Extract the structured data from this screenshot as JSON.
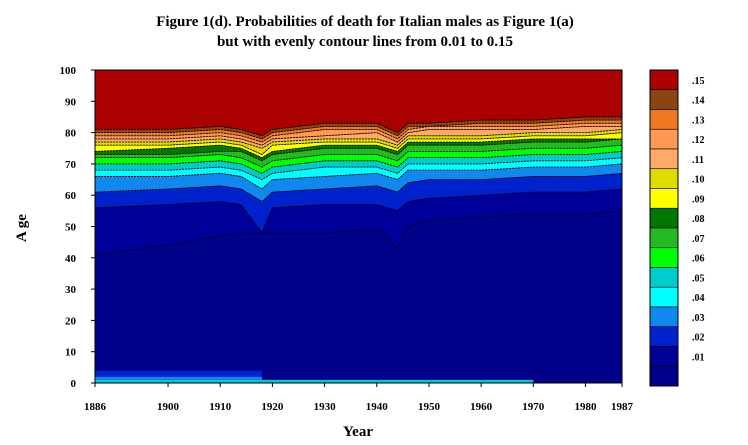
{
  "chart_data": {
    "type": "heatmap",
    "title_line1": "Figure 1(d). Probabilities of death for Italian males as Figure 1(a)",
    "title_line2": "but with evenly contour lines from 0.01 to 0.15",
    "xlabel": "Year",
    "ylabel": "A ge",
    "xlim": [
      1886,
      1987
    ],
    "ylim": [
      0,
      100
    ],
    "x_ticks": [
      {
        "value": 1886,
        "label": "1886"
      },
      {
        "value": 1900,
        "label": "1900"
      },
      {
        "value": 1910,
        "label": "1910"
      },
      {
        "value": 1920,
        "label": "1920"
      },
      {
        "value": 1930,
        "label": "1930"
      },
      {
        "value": 1940,
        "label": "1940"
      },
      {
        "value": 1950,
        "label": "1950"
      },
      {
        "value": 1960,
        "label": "1960"
      },
      {
        "value": 1970,
        "label": "1970"
      },
      {
        "value": 1980,
        "label": "1980"
      },
      {
        "value": 1987,
        "label": "1987"
      }
    ],
    "y_ticks": [
      {
        "value": 0,
        "label": "0"
      },
      {
        "value": 10,
        "label": "10"
      },
      {
        "value": 20,
        "label": "20"
      },
      {
        "value": 30,
        "label": "30"
      },
      {
        "value": 40,
        "label": "40"
      },
      {
        "value": 50,
        "label": "50"
      },
      {
        "value": 60,
        "label": "60"
      },
      {
        "value": 70,
        "label": "70"
      },
      {
        "value": 80,
        "label": "80"
      },
      {
        "value": 90,
        "label": "90"
      },
      {
        "value": 100,
        "label": "100"
      }
    ],
    "legend": [
      {
        "label": ".15",
        "color": "#aa0000"
      },
      {
        "label": ".14",
        "color": "#8b4513"
      },
      {
        "label": ".13",
        "color": "#ee7722"
      },
      {
        "label": ".12",
        "color": "#ff9955"
      },
      {
        "label": ".11",
        "color": "#ffaa66"
      },
      {
        "label": ".10",
        "color": "#dddd00"
      },
      {
        "label": ".09",
        "color": "#ffff00"
      },
      {
        "label": ".08",
        "color": "#007700"
      },
      {
        "label": ".07",
        "color": "#22bb22"
      },
      {
        "label": ".06",
        "color": "#00ff00"
      },
      {
        "label": ".05",
        "color": "#00cccc"
      },
      {
        "label": ".04",
        "color": "#00ffff"
      },
      {
        "label": ".03",
        "color": "#1188ee"
      },
      {
        "label": ".02",
        "color": "#0022cc"
      },
      {
        "label": ".01",
        "color": "#000099"
      },
      {
        "label": "",
        "color": "#000088"
      }
    ],
    "contour_levels": [
      0.01,
      0.02,
      0.03,
      0.04,
      0.05,
      0.06,
      0.07,
      0.08,
      0.09,
      0.1,
      0.11,
      0.12,
      0.13,
      0.14,
      0.15
    ],
    "contour_boundaries_years": [
      1886,
      1900,
      1910,
      1914,
      1918,
      1920,
      1930,
      1940,
      1944,
      1946,
      1950,
      1960,
      1970,
      1980,
      1987
    ],
    "contour_boundaries": [
      {
        "level": 0.01,
        "ages": [
          41,
          44,
          47,
          48,
          48,
          48,
          48,
          49,
          43,
          50,
          52,
          53,
          54,
          54,
          55
        ]
      },
      {
        "level": 0.02,
        "ages": [
          56,
          57,
          58,
          57,
          48,
          56,
          57,
          57,
          55,
          58,
          59,
          60,
          61,
          61,
          62
        ]
      },
      {
        "level": 0.03,
        "ages": [
          61,
          62,
          63,
          62,
          58,
          61,
          62,
          63,
          61,
          64,
          65,
          65,
          66,
          66,
          67
        ]
      },
      {
        "level": 0.04,
        "ages": [
          66,
          66,
          67,
          66,
          62,
          65,
          66,
          67,
          65,
          68,
          68,
          68,
          69,
          69,
          70
        ]
      },
      {
        "level": 0.05,
        "ages": [
          68,
          68,
          69,
          68,
          65,
          67,
          69,
          69,
          67,
          70,
          70,
          70,
          71,
          71,
          72
        ]
      },
      {
        "level": 0.06,
        "ages": [
          70,
          70,
          71,
          70,
          67,
          69,
          71,
          71,
          69,
          72,
          72,
          72,
          73,
          73,
          74
        ]
      },
      {
        "level": 0.07,
        "ages": [
          72,
          72,
          73,
          72,
          69,
          71,
          73,
          73,
          71,
          74,
          74,
          74,
          75,
          75,
          76
        ]
      },
      {
        "level": 0.08,
        "ages": [
          73,
          73,
          74,
          74,
          71,
          73,
          75,
          75,
          73,
          76,
          76,
          76,
          77,
          77,
          78
        ]
      },
      {
        "level": 0.09,
        "ages": [
          74,
          75,
          76,
          75,
          72,
          74,
          76,
          76,
          74,
          77,
          77,
          77,
          78,
          78,
          78
        ]
      },
      {
        "level": 0.1,
        "ages": [
          76,
          76,
          77,
          76,
          73,
          76,
          77,
          77,
          75,
          78,
          78,
          78,
          79,
          79,
          80
        ]
      },
      {
        "level": 0.11,
        "ages": [
          77,
          77,
          78,
          77,
          75,
          77,
          78,
          78,
          76,
          79,
          79,
          79,
          80,
          80,
          81
        ]
      },
      {
        "level": 0.12,
        "ages": [
          78,
          78,
          79,
          78,
          76,
          78,
          79,
          80,
          77,
          80,
          81,
          81,
          81,
          82,
          82
        ]
      },
      {
        "level": 0.13,
        "ages": [
          79,
          79,
          80,
          79,
          77,
          79,
          81,
          81,
          78,
          81,
          82,
          82,
          82,
          83,
          83
        ]
      },
      {
        "level": 0.14,
        "ages": [
          80,
          80,
          81,
          80,
          78,
          80,
          82,
          82,
          79,
          82,
          82,
          83,
          83,
          84,
          84
        ]
      },
      {
        "level": 0.15,
        "ages": [
          81,
          81,
          82,
          81,
          79,
          81,
          83,
          83,
          80,
          83,
          83,
          84,
          84,
          85,
          85
        ]
      }
    ],
    "young_age_bands": [
      {
        "color": "#0022cc",
        "x": [
          1886,
          1918
        ],
        "y": [
          2,
          4
        ]
      },
      {
        "color": "#1188ee",
        "x": [
          1886,
          1918
        ],
        "y": [
          1,
          2
        ]
      },
      {
        "color": "#00cccc",
        "x": [
          1886,
          1918
        ],
        "y": [
          0,
          1
        ]
      },
      {
        "color": "#00cccc",
        "x": [
          1918,
          1970
        ],
        "y": [
          0,
          1
        ]
      }
    ],
    "grid": false,
    "legend_position": "right"
  }
}
